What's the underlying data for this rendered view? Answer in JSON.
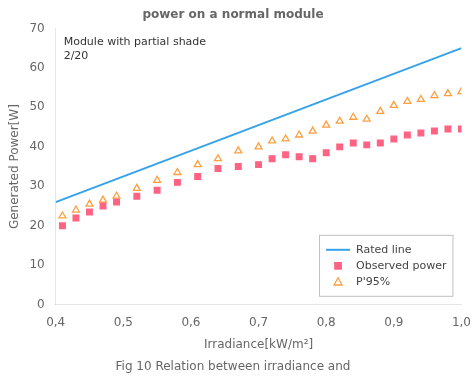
{
  "chart_data": {
    "type": "scatter",
    "title": "power on a normal module",
    "xlabel": "Irradiance[kW/m²]",
    "ylabel": "Generated Power[W]",
    "annotation": "Module with partial shade\n2/20",
    "caption": "Fig 10 Relation between irradiance and",
    "xlim": [
      0.4,
      1.0
    ],
    "ylim": [
      0,
      70
    ],
    "xticks": [
      {
        "value": 0.4,
        "label": "0,4"
      },
      {
        "value": 0.5,
        "label": "0,5"
      },
      {
        "value": 0.6,
        "label": "0,6"
      },
      {
        "value": 0.7,
        "label": "0,7"
      },
      {
        "value": 0.8,
        "label": "0,8"
      },
      {
        "value": 0.9,
        "label": "0,9"
      },
      {
        "value": 1.0,
        "label": "1,0"
      }
    ],
    "yticks": [
      0,
      10,
      20,
      30,
      40,
      50,
      60,
      70
    ],
    "grid": false,
    "legend": "lower right",
    "series": [
      {
        "name": "Rated line",
        "type": "line",
        "line_style": "solid",
        "x": [
          0.4,
          1.0
        ],
        "values": [
          26.0,
          65.0
        ]
      },
      {
        "name": "Observed power",
        "type": "scatter",
        "marker": "square",
        "x": [
          0.41,
          0.43,
          0.45,
          0.47,
          0.49,
          0.52,
          0.55,
          0.58,
          0.61,
          0.64,
          0.67,
          0.7,
          0.72,
          0.74,
          0.76,
          0.78,
          0.8,
          0.82,
          0.84,
          0.86,
          0.88,
          0.9,
          0.92,
          0.94,
          0.96,
          0.98,
          1.0
        ],
        "values": [
          20.0,
          22.0,
          23.5,
          25.0,
          26.0,
          27.5,
          29.0,
          31.0,
          32.5,
          34.5,
          35.0,
          35.5,
          37.0,
          38.0,
          37.5,
          37.0,
          38.5,
          40.0,
          41.0,
          40.5,
          41.0,
          42.0,
          43.0,
          43.5,
          44.0,
          44.5,
          44.5
        ]
      },
      {
        "name": "P'95%",
        "type": "scatter",
        "marker": "triangle-open",
        "x": [
          0.41,
          0.43,
          0.45,
          0.47,
          0.49,
          0.52,
          0.55,
          0.58,
          0.61,
          0.64,
          0.67,
          0.7,
          0.72,
          0.74,
          0.76,
          0.78,
          0.8,
          0.82,
          0.84,
          0.86,
          0.88,
          0.9,
          0.92,
          0.94,
          0.96,
          0.98,
          1.0
        ],
        "values": [
          22.5,
          24.0,
          25.5,
          26.5,
          27.5,
          29.5,
          31.5,
          33.5,
          35.5,
          37.0,
          39.0,
          40.0,
          41.5,
          42.0,
          43.0,
          44.0,
          45.5,
          46.5,
          47.5,
          47.0,
          49.0,
          50.5,
          51.5,
          52.0,
          53.0,
          53.5,
          54.0
        ]
      }
    ]
  }
}
